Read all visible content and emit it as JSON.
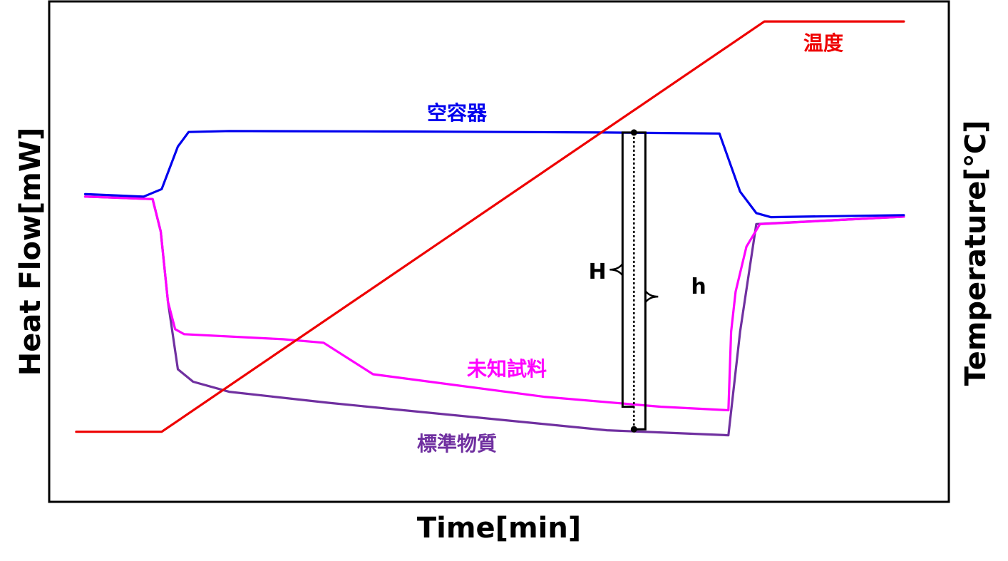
{
  "chart_data": {
    "type": "line",
    "title": "",
    "xlabel": "Time[min]",
    "ylabel": "Heat Flow[mW]",
    "y2label": "Temperature[℃]",
    "grid": false,
    "xlim": [
      0,
      100
    ],
    "ylim": [
      0,
      100
    ],
    "series": [
      {
        "name": "温度",
        "color": "#ee0000",
        "x": [
          3,
          12.5,
          79.5,
          95
        ],
        "values": [
          14,
          14,
          96,
          96
        ]
      },
      {
        "name": "空容器",
        "color": "#0000ee",
        "x": [
          4,
          10.5,
          12.5,
          14.3,
          15.5,
          20,
          40,
          62,
          74.5,
          76.8,
          78.6,
          80.2,
          95
        ],
        "values": [
          61.5,
          61,
          62.5,
          71,
          73.9,
          74.1,
          74,
          73.8,
          73.6,
          62,
          57.7,
          56.9,
          57.3
        ]
      },
      {
        "name": "未知試料",
        "color": "#ff00ff",
        "x": [
          4,
          11.5,
          12.4,
          13.2,
          14,
          15,
          26,
          30.5,
          36,
          55,
          68,
          75.5,
          75.8,
          76.3,
          77.5,
          79,
          95
        ],
        "values": [
          61,
          60.5,
          54,
          40,
          34.5,
          33.5,
          32.5,
          31.8,
          25.5,
          21,
          19,
          18.3,
          34,
          42,
          51,
          55.5,
          57
        ]
      },
      {
        "name": "標準物質",
        "color": "#7030a0",
        "x": [
          4,
          11.5,
          12.4,
          13.2,
          14.3,
          16,
          20,
          31,
          62,
          75.5,
          76.8,
          78.6,
          95
        ],
        "values": [
          61,
          60.5,
          54,
          40,
          26.5,
          24,
          22,
          19.8,
          14.3,
          13.3,
          34,
          55.5,
          57
        ]
      }
    ],
    "annotations": [
      {
        "text": "H",
        "x": 65,
        "y_from": 14.5,
        "y_to": 73.8
      },
      {
        "text": "h",
        "x": 65,
        "y_from": 19,
        "y_to": 73.8
      }
    ]
  }
}
